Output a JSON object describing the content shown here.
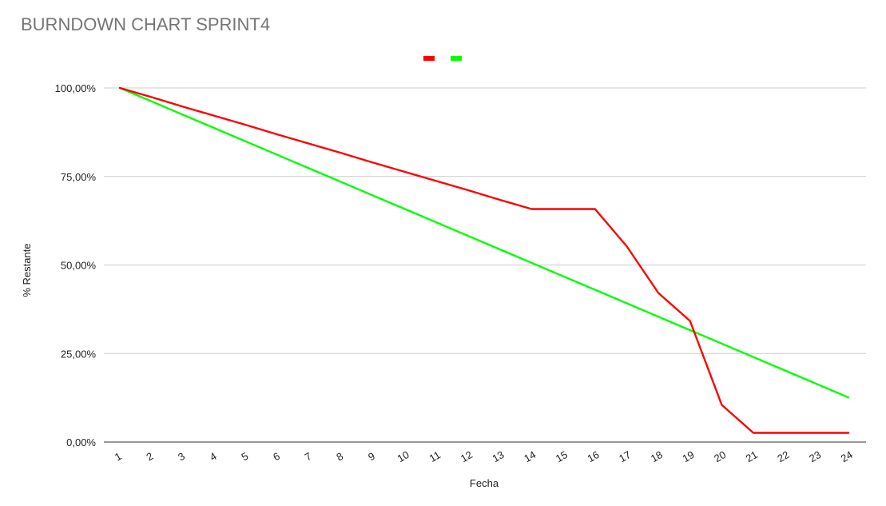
{
  "chart_data": {
    "type": "line",
    "title": "BURNDOWN CHART SPRINT4",
    "xlabel": "Fecha",
    "ylabel": "% Restante",
    "categories": [
      "1",
      "2",
      "3",
      "4",
      "5",
      "6",
      "7",
      "8",
      "9",
      "10",
      "11",
      "12",
      "13",
      "14",
      "15",
      "16",
      "17",
      "18",
      "19",
      "20",
      "21",
      "22",
      "23",
      "24"
    ],
    "ylim": [
      0,
      100
    ],
    "yticks": [
      0,
      25,
      50,
      75,
      100
    ],
    "ytick_labels": [
      "0,00%",
      "25,00%",
      "50,00%",
      "75,00%",
      "100,00%"
    ],
    "grid": "horizontal",
    "legend": "top-center",
    "series": [
      {
        "color": "#ff0000",
        "values": [
          100,
          97.4,
          94.7,
          92.1,
          89.5,
          86.8,
          84.2,
          81.6,
          78.9,
          76.3,
          73.7,
          71.1,
          68.4,
          65.8,
          65.8,
          65.8,
          55.3,
          42.1,
          34.2,
          10.5,
          2.6,
          2.6,
          2.6,
          2.6
        ]
      },
      {
        "color": "#00ff00",
        "values": [
          100,
          96.2,
          92.4,
          88.6,
          84.8,
          81.0,
          77.2,
          73.4,
          69.6,
          65.8,
          62.0,
          58.2,
          54.4,
          50.6,
          46.8,
          43.0,
          39.2,
          35.4,
          31.6,
          27.8,
          24.0,
          20.2,
          16.4,
          12.6
        ]
      }
    ]
  }
}
